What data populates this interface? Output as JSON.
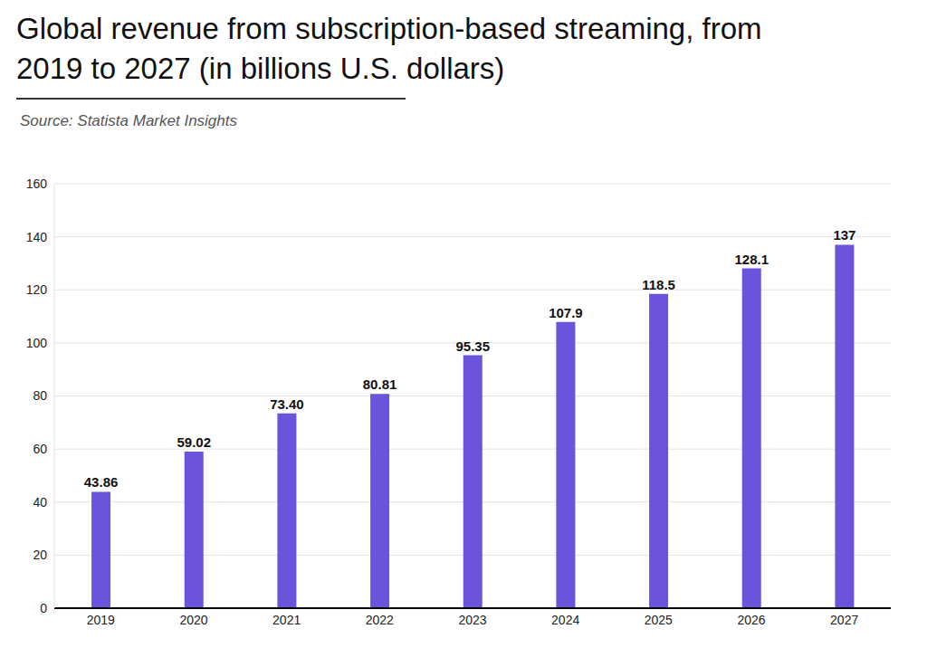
{
  "chart_data": {
    "type": "bar",
    "title": "Global revenue from subscription-based streaming, from 2019 to 2027 (in billions U.S. dollars)",
    "subtitle": "Source: Statista Market Insights",
    "categories": [
      "2019",
      "2020",
      "2021",
      "2022",
      "2023",
      "2024",
      "2025",
      "2026",
      "2027"
    ],
    "values": [
      43.86,
      59.02,
      73.4,
      80.81,
      95.35,
      107.9,
      118.5,
      128.1,
      137
    ],
    "value_labels": [
      "43.86",
      "59.02",
      "73.40",
      "80.81",
      "95.35",
      "107.9",
      "118.5",
      "128.1",
      "137"
    ],
    "color": "#6b53dc",
    "ylim": [
      0,
      160
    ],
    "yticks": [
      0,
      20,
      40,
      60,
      80,
      100,
      120,
      140,
      160
    ],
    "grid": true,
    "data_labels": true
  }
}
